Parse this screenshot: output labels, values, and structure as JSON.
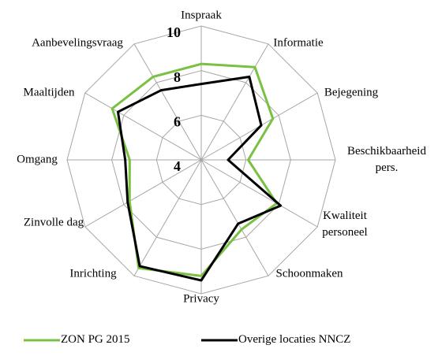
{
  "chart_data": {
    "type": "radar",
    "categories": [
      "Inspraak",
      "Informatie",
      "Bejegening",
      "Beschikbaarheid pers.",
      "Kwaliteit personeel",
      "Schoonmaken",
      "Privacy",
      "Inrichting",
      "Zinvolle dag",
      "Omgang",
      "Maaltijden",
      "Aanbevelingsvraag"
    ],
    "series": [
      {
        "name": "ZON PG 2015",
        "color": "#7ac143",
        "values": [
          8.3,
          8.8,
          7.7,
          6.1,
          7.9,
          7.6,
          9.2,
          9.6,
          7.7,
          7.2,
          8.6,
          8.3
        ]
      },
      {
        "name": "Overige locaties NNCZ",
        "color": "#000000",
        "values": [
          7.4,
          8.3,
          7.1,
          5.2,
          8.1,
          7.3,
          9.4,
          9.5,
          7.8,
          7.4,
          8.3,
          7.6
        ]
      }
    ],
    "ylim": [
      4,
      10
    ],
    "yticks": [
      4,
      6,
      8,
      10
    ],
    "grid": true,
    "legend": "bottom"
  }
}
